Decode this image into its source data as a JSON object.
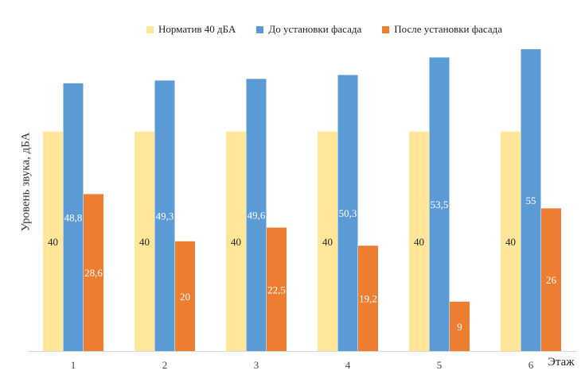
{
  "chart_data": {
    "type": "bar",
    "categories": [
      "1",
      "2",
      "3",
      "4",
      "5",
      "6"
    ],
    "series": [
      {
        "name": "Норматив 40 дБА",
        "values": [
          40,
          40,
          40,
          40,
          40,
          40
        ],
        "color": "#FFE699"
      },
      {
        "name": "До установки фасада",
        "values": [
          48.8,
          49.3,
          49.6,
          50.3,
          53.5,
          55
        ],
        "color": "#5B9BD5"
      },
      {
        "name": "После установки фасада",
        "values": [
          28.6,
          20,
          22.5,
          19.2,
          9,
          26
        ],
        "color": "#ED7D31"
      }
    ],
    "data_labels": [
      [
        "40",
        "40",
        "40",
        "40",
        "40",
        "40"
      ],
      [
        "48,8",
        "49,3",
        "49,6",
        "50,3",
        "53,5",
        "55"
      ],
      [
        "28,6",
        "20",
        "22,5",
        "19,2",
        "9",
        "26"
      ]
    ],
    "xlabel": "Этаж",
    "ylabel": "Уровень звука, дБА",
    "ylim": [
      0,
      55
    ],
    "grid": false,
    "legend_position": "top"
  }
}
